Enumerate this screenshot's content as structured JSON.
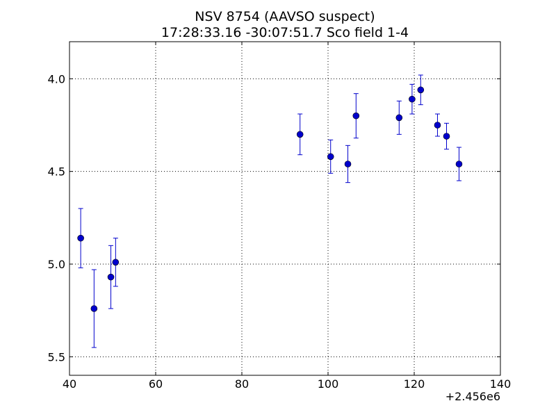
{
  "chart_data": {
    "type": "scatter",
    "title": "NSV 8754  (AAVSO suspect)",
    "subtitle": "17:28:33.16 -30:07:51.7 Sco field 1-4",
    "xlabel": "",
    "ylabel": "",
    "x_offset_label": "+2.456e6",
    "xlim": [
      40,
      140
    ],
    "ylim": [
      5.6,
      3.8
    ],
    "y_inverted": true,
    "grid": true,
    "grid_style": "dotted",
    "xticks": [
      40,
      60,
      80,
      100,
      120,
      140
    ],
    "xtick_labels": [
      "40",
      "60",
      "80",
      "100",
      "120",
      "140"
    ],
    "yticks": [
      4.0,
      4.5,
      5.0,
      5.5
    ],
    "ytick_labels": [
      "4.0",
      "4.5",
      "5.0",
      "5.5"
    ],
    "color": "#0000cc",
    "series": [
      {
        "points": [
          {
            "x": 42.6,
            "y": 4.86,
            "err": 0.16
          },
          {
            "x": 45.7,
            "y": 5.24,
            "err": 0.21
          },
          {
            "x": 49.6,
            "y": 5.07,
            "err": 0.17
          },
          {
            "x": 50.7,
            "y": 4.99,
            "err": 0.13
          },
          {
            "x": 93.5,
            "y": 4.3,
            "err": 0.11
          },
          {
            "x": 100.6,
            "y": 4.42,
            "err": 0.09
          },
          {
            "x": 104.6,
            "y": 4.46,
            "err": 0.1
          },
          {
            "x": 106.5,
            "y": 4.2,
            "err": 0.12
          },
          {
            "x": 116.5,
            "y": 4.21,
            "err": 0.09
          },
          {
            "x": 119.5,
            "y": 4.11,
            "err": 0.08
          },
          {
            "x": 121.5,
            "y": 4.06,
            "err": 0.08
          },
          {
            "x": 125.4,
            "y": 4.25,
            "err": 0.06
          },
          {
            "x": 127.5,
            "y": 4.31,
            "err": 0.07
          },
          {
            "x": 130.4,
            "y": 4.46,
            "err": 0.09
          }
        ]
      }
    ]
  }
}
